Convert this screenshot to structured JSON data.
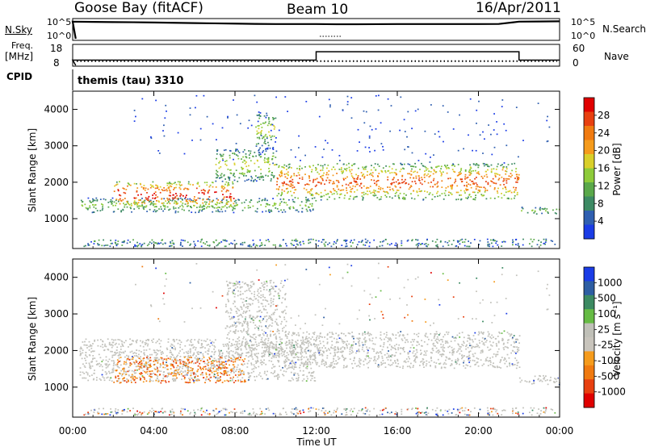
{
  "header": {
    "station": "Goose Bay (fitACF)",
    "beam": "Beam 10",
    "date": "16/Apr/2011"
  },
  "strip_labels": {
    "nsky": "N.Sky",
    "nsky_ticks": [
      "10^5",
      "10^0"
    ],
    "nsearch": "N.Search",
    "nsearch_ticks": [
      "10^5",
      "10^0"
    ],
    "freq_line1": "Freq.",
    "freq_line2": "[MHz]",
    "freq_ticks": [
      "18",
      "8"
    ],
    "nave": "Nave",
    "nave_ticks": [
      "60",
      "0"
    ],
    "cpid": "CPID",
    "cpid_value": "themis (tau) 3310"
  },
  "colors": {
    "power": [
      "#1a3ce6",
      "#2f5fb0",
      "#3d8a64",
      "#5aa84a",
      "#8ecb3a",
      "#d9cf2a",
      "#f59b1c",
      "#f07a10",
      "#e84010",
      "#e00000"
    ],
    "velocity": [
      "#1a3ce6",
      "#2e5ea2",
      "#3c8a62",
      "#66bb44",
      "#c0c0b8",
      "#c8c4bc",
      "#f59b1c",
      "#f07a10",
      "#e84010",
      "#e00000"
    ],
    "gray_ground": "#c2c2bc"
  },
  "chart_data": [
    {
      "type": "line",
      "title": "N.Sky / N.Search",
      "x": [
        "00:00",
        "01:00",
        "02:00",
        "03:00",
        "04:00",
        "05:00",
        "06:00",
        "07:00",
        "08:00",
        "09:00",
        "10:00",
        "11:00",
        "12:00",
        "13:00",
        "14:00",
        "15:00",
        "16:00",
        "17:00",
        "18:00",
        "19:00",
        "20:00",
        "21:00",
        "22:00",
        "23:00",
        "24:00"
      ],
      "series": [
        {
          "name": "N.Sky",
          "values": [
            40000,
            35000,
            30000,
            28000,
            24000,
            20000,
            16000,
            14000,
            12000,
            10000,
            9000,
            9000,
            9000,
            8000,
            8000,
            8500,
            9000,
            9000,
            9000,
            9000,
            9000,
            9500,
            40000,
            45000,
            50000
          ]
        }
      ],
      "yscale": "log",
      "ylim": [
        1,
        100000
      ]
    },
    {
      "type": "line",
      "title": "Freq. / Nave",
      "series": [
        {
          "name": "Freq.",
          "segments": [
            {
              "x": [
                "00:00",
                "12:00"
              ],
              "value": 10.5
            },
            {
              "x": [
                "12:00",
                "22:00"
              ],
              "value": 14.5
            },
            {
              "x": [
                "22:00",
                "24:00"
              ],
              "value": 10.5
            }
          ]
        },
        {
          "name": "Nave",
          "value": 12
        }
      ],
      "freq_ylim": [
        8,
        18
      ],
      "nave_ylim": [
        0,
        60
      ]
    },
    {
      "type": "heatmap",
      "title": "Power",
      "xlabel": "",
      "ylabel": "Slant Range [km]",
      "xlim": [
        "00:00",
        "24:00"
      ],
      "x_ticks": [
        "00:00",
        "04:00",
        "08:00",
        "12:00",
        "16:00",
        "20:00",
        "00:00"
      ],
      "ylim": [
        180,
        4500
      ],
      "y_ticks": [
        1000,
        2000,
        3000,
        4000
      ],
      "colorbar_label": "Power [dB]",
      "colorbar_ticks": [
        28,
        24,
        20,
        16,
        12,
        8,
        4
      ],
      "colorbar_range": [
        0,
        30
      ],
      "regions": [
        {
          "time": [
            "00:20",
            "12:00"
          ],
          "range_km": [
            1150,
            1550
          ],
          "level": "low-mid"
        },
        {
          "time": [
            "02:00",
            "08:00"
          ],
          "range_km": [
            1300,
            2000
          ],
          "level": "high"
        },
        {
          "time": [
            "07:00",
            "10:00"
          ],
          "range_km": [
            2000,
            2900
          ],
          "level": "mid"
        },
        {
          "time": [
            "09:00",
            "10:00"
          ],
          "range_km": [
            2900,
            3900
          ],
          "level": "mid"
        },
        {
          "time": [
            "10:00",
            "22:00"
          ],
          "range_km": [
            1500,
            2500
          ],
          "level": "mid-high"
        },
        {
          "time": [
            "22:00",
            "24:00"
          ],
          "range_km": [
            1100,
            1300
          ],
          "level": "low-mid"
        }
      ]
    },
    {
      "type": "heatmap",
      "title": "Velocity",
      "xlabel": "Time UT",
      "ylabel": "Slant Range [km]",
      "xlim": [
        "00:00",
        "24:00"
      ],
      "x_ticks": [
        "00:00",
        "04:00",
        "08:00",
        "12:00",
        "16:00",
        "20:00",
        "00:00"
      ],
      "ylim": [
        180,
        4500
      ],
      "y_ticks": [
        1000,
        2000,
        3000,
        4000
      ],
      "colorbar_label": "Velocity [m s⁻¹]",
      "colorbar_ticks": [
        1000,
        500,
        100,
        25,
        -25,
        -100,
        -500,
        -1000
      ],
      "regions": [
        {
          "time": [
            "00:20",
            "12:00"
          ],
          "range_km": [
            1150,
            2300
          ],
          "velocity": "ground scatter"
        },
        {
          "time": [
            "02:00",
            "08:30"
          ],
          "range_km": [
            1100,
            1800
          ],
          "velocity": "-100 to -500"
        },
        {
          "time": [
            "07:30",
            "10:30"
          ],
          "range_km": [
            1800,
            3900
          ],
          "velocity": "ground scatter"
        },
        {
          "time": [
            "10:30",
            "22:00"
          ],
          "range_km": [
            1500,
            2500
          ],
          "velocity": "ground scatter"
        },
        {
          "time": [
            "22:00",
            "24:00"
          ],
          "range_km": [
            1050,
            1300
          ],
          "velocity": "ground scatter"
        }
      ]
    }
  ]
}
